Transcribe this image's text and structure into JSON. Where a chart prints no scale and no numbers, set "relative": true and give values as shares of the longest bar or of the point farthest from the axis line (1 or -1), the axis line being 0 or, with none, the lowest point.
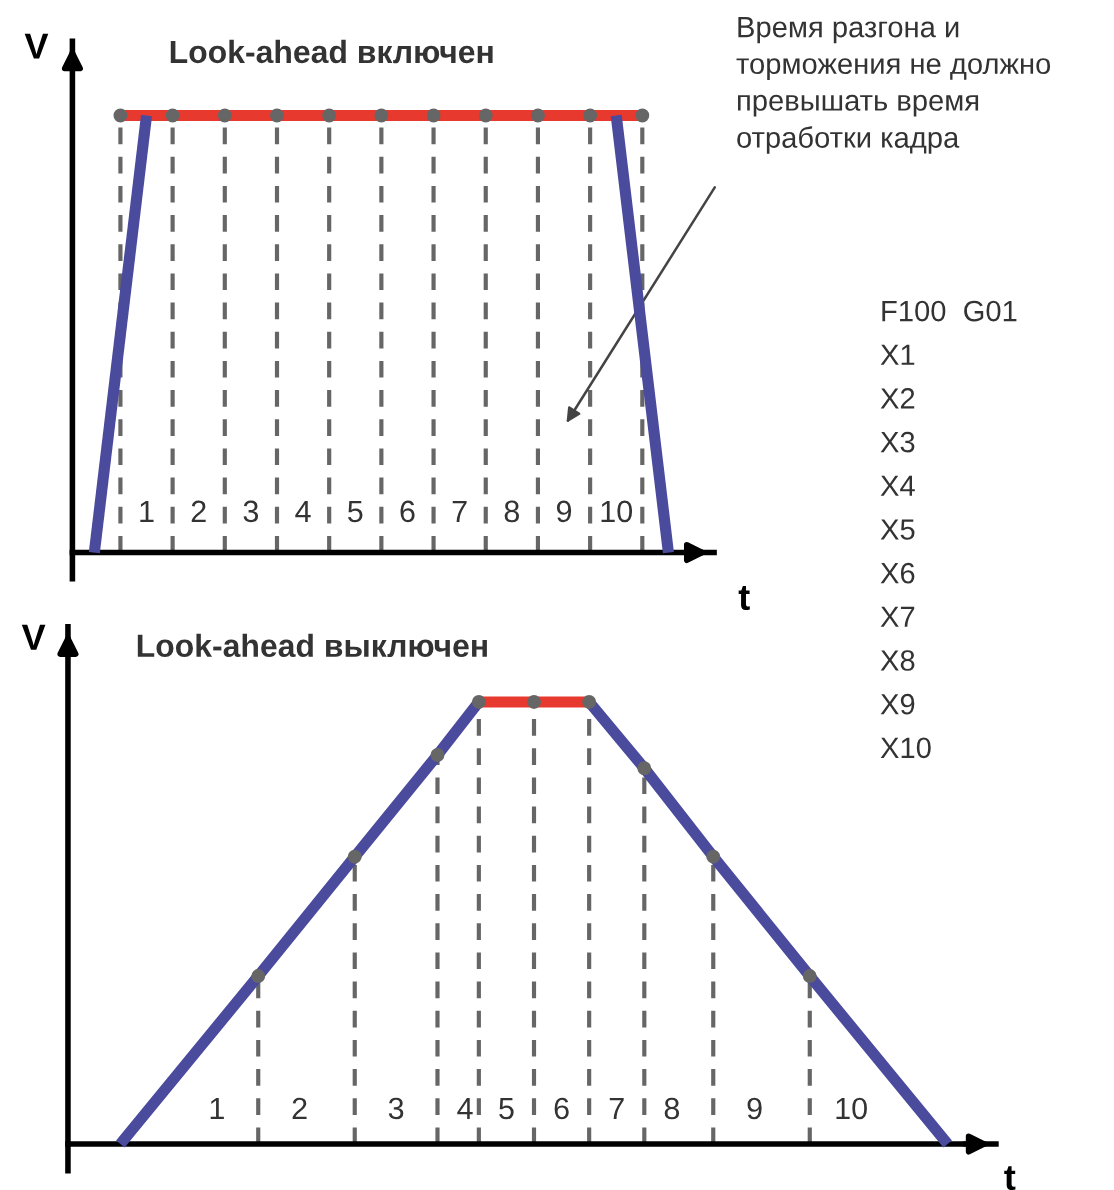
{
  "chart_data": [
    {
      "type": "line",
      "relative": true,
      "title": "Look-ahead включен",
      "xlabel": "t",
      "ylabel": "V",
      "tick_labels": "x",
      "categories": [
        null,
        null,
        "1",
        null,
        "2",
        null,
        "3",
        null,
        "4",
        null,
        "5",
        null,
        "6",
        null,
        "7",
        null,
        "8",
        null,
        "9",
        null,
        "10",
        null,
        null
      ],
      "series": [
        {
          "type": "lollipop",
          "marker": "circle",
          "color": "#666666",
          "line_style": "dashed",
          "values": [
            null,
            1,
            null,
            1,
            null,
            1,
            null,
            1,
            null,
            1,
            null,
            1,
            null,
            1,
            null,
            1,
            null,
            1,
            null,
            1,
            null,
            1,
            null
          ]
        },
        {
          "color": "#e8392f",
          "values": [
            null,
            1,
            1,
            1,
            1,
            1,
            1,
            1,
            1,
            1,
            1,
            1,
            1,
            1,
            1,
            1,
            1,
            1,
            1,
            1,
            1,
            1,
            null
          ]
        },
        {
          "color": "#4b4b9e",
          "values": [
            0,
            0.5,
            1,
            null,
            null,
            null,
            null,
            null,
            null,
            null,
            null,
            null,
            null,
            null,
            null,
            null,
            null,
            null,
            null,
            null,
            null,
            null,
            null
          ]
        },
        {
          "color": "#4b4b9e",
          "values": [
            null,
            null,
            null,
            null,
            null,
            null,
            null,
            null,
            null,
            null,
            null,
            null,
            null,
            null,
            null,
            null,
            null,
            null,
            null,
            null,
            1,
            0.5,
            0
          ]
        }
      ],
      "annotations": [
        "Время разгона и\nторможения не должно\nпревышать время\nотработки кадра",
        "F100  G01\nX1\nX2\nX3\nX4\nX5\nX6\nX7\nX8\nX9\nX10"
      ]
    },
    {
      "type": "line",
      "relative": true,
      "title": "Look-ahead выключен",
      "xlabel": "t",
      "ylabel": "V",
      "tick_labels": "x",
      "categories": [
        null,
        null,
        null,
        null,
        null,
        null,
        null,
        "1",
        null,
        null,
        null,
        null,
        null,
        "2",
        null,
        null,
        null,
        null,
        null,
        null,
        "3",
        null,
        null,
        null,
        null,
        "4",
        null,
        null,
        "5",
        null,
        null,
        null,
        "6",
        null,
        null,
        null,
        "7",
        null,
        null,
        null,
        "8",
        null,
        null,
        null,
        null,
        null,
        "9",
        null,
        null,
        null,
        null,
        null,
        null,
        "10",
        null,
        null,
        null,
        null,
        null,
        null,
        null
      ],
      "series": [
        {
          "type": "lollipop",
          "marker": "circle",
          "color": "#666666",
          "line_style": "dashed",
          "values": [
            null,
            null,
            null,
            null,
            null,
            null,
            null,
            null,
            null,
            null,
            0.38,
            null,
            null,
            null,
            null,
            null,
            null,
            0.65,
            null,
            null,
            null,
            null,
            null,
            0.88,
            null,
            null,
            1,
            null,
            null,
            null,
            1,
            null,
            null,
            null,
            1,
            null,
            null,
            null,
            0.85,
            null,
            null,
            null,
            null,
            0.65,
            null,
            null,
            null,
            null,
            null,
            null,
            0.38,
            null,
            null,
            null,
            null,
            null,
            null,
            null,
            null,
            null,
            null
          ]
        },
        {
          "color": "#e8392f",
          "values": [
            null,
            null,
            null,
            null,
            null,
            null,
            null,
            null,
            null,
            null,
            null,
            null,
            null,
            null,
            null,
            null,
            null,
            null,
            null,
            null,
            null,
            null,
            null,
            null,
            null,
            null,
            1,
            1,
            1,
            1,
            1,
            1,
            1,
            1,
            1,
            null,
            null,
            null,
            null,
            null,
            null,
            null,
            null,
            null,
            null,
            null,
            null,
            null,
            null,
            null,
            null,
            null,
            null,
            null,
            null,
            null,
            null,
            null,
            null,
            null,
            null
          ]
        },
        {
          "color": "#4b4b9e",
          "values": [
            0,
            null,
            null,
            null,
            null,
            null,
            null,
            null,
            null,
            null,
            0.38,
            null,
            null,
            null,
            null,
            null,
            null,
            0.65,
            null,
            null,
            null,
            null,
            null,
            0.88,
            null,
            null,
            1,
            null,
            null,
            null,
            null,
            null,
            null,
            null,
            null,
            null,
            null,
            null,
            null,
            null,
            null,
            null,
            null,
            null,
            null,
            null,
            null,
            null,
            null,
            null,
            null,
            null,
            null,
            null,
            null,
            null,
            null,
            null,
            null,
            null,
            null
          ]
        },
        {
          "color": "#4b4b9e",
          "values": [
            null,
            null,
            null,
            null,
            null,
            null,
            null,
            null,
            null,
            null,
            null,
            null,
            null,
            null,
            null,
            null,
            null,
            null,
            null,
            null,
            null,
            null,
            null,
            null,
            null,
            null,
            null,
            null,
            null,
            null,
            null,
            null,
            null,
            null,
            1,
            null,
            null,
            null,
            0.85,
            null,
            null,
            null,
            null,
            0.65,
            null,
            null,
            null,
            null,
            null,
            null,
            0.38,
            null,
            null,
            null,
            null,
            null,
            null,
            null,
            null,
            null,
            0
          ]
        }
      ]
    }
  ]
}
